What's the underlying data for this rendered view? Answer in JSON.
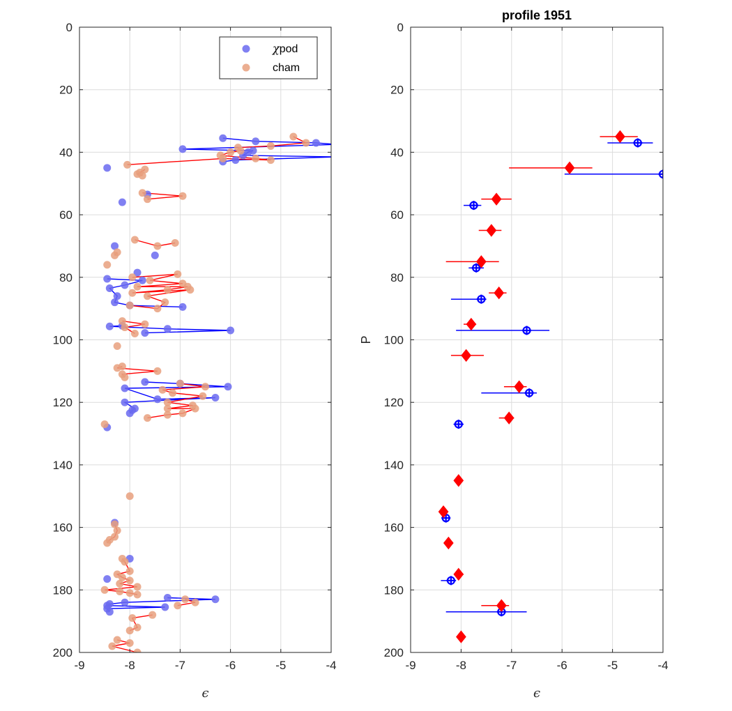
{
  "colors": {
    "chipod_marker": "#6a6af0",
    "cham_marker": "#e8a07e",
    "chipod_line": "#0000ff",
    "cham_line": "#ff0000",
    "overlap_marker": "#8a6aa8",
    "grid": "#dcdcdc",
    "axis": "#262626"
  },
  "chart_data": [
    {
      "type": "scatter",
      "title": "",
      "xlabel": "ϵ",
      "ylabel": "",
      "xlim": [
        -9,
        -4
      ],
      "ylim": [
        0,
        200
      ],
      "y_reversed": true,
      "grid": true,
      "xticks": [
        "-9",
        "-8",
        "-7",
        "-6",
        "-5",
        "-4"
      ],
      "yticks": [
        "0",
        "20",
        "40",
        "60",
        "80",
        "100",
        "120",
        "140",
        "160",
        "180",
        "200"
      ],
      "legend": {
        "location": "top-right",
        "entries": [
          {
            "prefix": "χ",
            "label": "pod",
            "color": "#6a6af0"
          },
          {
            "prefix": "",
            "label": "cham",
            "color": "#e8a07e"
          }
        ]
      },
      "series": [
        {
          "name": "χpod",
          "connected": true,
          "points": [
            [
              -6.15,
              35.5
            ],
            [
              -5.5,
              36.5
            ],
            [
              -4.3,
              37
            ],
            [
              -3.9,
              37.5
            ],
            [
              -6.95,
              39
            ],
            [
              -5.55,
              39.5
            ],
            [
              -5.65,
              40
            ],
            [
              -5.75,
              41
            ],
            [
              -3.9,
              41.5
            ],
            [
              -5.9,
              42.5
            ],
            [
              -6.15,
              43
            ]
          ]
        },
        {
          "name": "χpod",
          "connected": false,
          "points": [
            [
              -8.45,
              45
            ],
            [
              -8.15,
              56
            ],
            [
              -7.65,
              53.5
            ]
          ]
        },
        {
          "name": "χpod",
          "connected": false,
          "points": [
            [
              -8.3,
              70
            ],
            [
              -7.5,
              73
            ],
            [
              -7.85,
              78.5
            ]
          ]
        },
        {
          "name": "χpod",
          "connected": true,
          "points": [
            [
              -8.45,
              80.5
            ],
            [
              -7.75,
              81
            ],
            [
              -8.1,
              82.5
            ],
            [
              -8.4,
              83.5
            ],
            [
              -8.25,
              86
            ],
            [
              -8.3,
              88
            ],
            [
              -8.0,
              89
            ],
            [
              -6.95,
              89.5
            ]
          ]
        },
        {
          "name": "χpod",
          "connected": true,
          "points": [
            [
              -8.15,
              95.5
            ],
            [
              -8.4,
              95.7
            ],
            [
              -7.25,
              96.5
            ],
            [
              -6.0,
              97
            ],
            [
              -7.7,
              97.8
            ]
          ]
        },
        {
          "name": "χpod",
          "connected": true,
          "points": [
            [
              -7.7,
              113.5
            ],
            [
              -7.0,
              114
            ],
            [
              -6.05,
              115
            ],
            [
              -8.1,
              115.5
            ],
            [
              -7.45,
              119
            ],
            [
              -6.3,
              118.5
            ],
            [
              -8.1,
              120
            ],
            [
              -7.9,
              122
            ],
            [
              -7.95,
              122.5
            ],
            [
              -8.0,
              123.5
            ]
          ]
        },
        {
          "name": "χpod",
          "connected": false,
          "points": [
            [
              -8.45,
              128
            ]
          ]
        },
        {
          "name": "χpod",
          "connected": false,
          "points": [
            [
              -8.3,
              158.5
            ],
            [
              -8.0,
              170
            ],
            [
              -8.45,
              176.5
            ]
          ]
        },
        {
          "name": "χpod",
          "connected": true,
          "points": [
            [
              -7.25,
              182.5
            ],
            [
              -6.3,
              183
            ],
            [
              -8.1,
              184
            ],
            [
              -8.4,
              184.5
            ],
            [
              -8.45,
              185
            ],
            [
              -7.3,
              185.5
            ],
            [
              -8.45,
              186
            ],
            [
              -8.4,
              187
            ]
          ]
        },
        {
          "name": "cham",
          "connected": true,
          "points": [
            [
              -4.75,
              35
            ],
            [
              -4.5,
              37
            ],
            [
              -5.2,
              38
            ],
            [
              -5.85,
              38.5
            ],
            [
              -5.8,
              39.5
            ],
            [
              -6.0,
              40
            ],
            [
              -6.2,
              41
            ],
            [
              -5.5,
              42
            ],
            [
              -5.2,
              42.5
            ],
            [
              -6.15,
              42
            ],
            [
              -8.05,
              44
            ]
          ]
        },
        {
          "name": "cham",
          "connected": true,
          "points": [
            [
              -7.7,
              45.5
            ],
            [
              -7.8,
              46.5
            ],
            [
              -7.85,
              47
            ],
            [
              -7.75,
              47.5
            ]
          ]
        },
        {
          "name": "cham",
          "connected": true,
          "points": [
            [
              -7.75,
              53
            ],
            [
              -6.95,
              54
            ],
            [
              -7.65,
              55
            ]
          ]
        },
        {
          "name": "cham",
          "connected": true,
          "points": [
            [
              -7.1,
              69
            ],
            [
              -7.45,
              70
            ],
            [
              -7.9,
              68
            ]
          ]
        },
        {
          "name": "cham",
          "connected": true,
          "points": [
            [
              -8.25,
              72
            ],
            [
              -8.3,
              73
            ]
          ]
        },
        {
          "name": "cham",
          "connected": false,
          "points": [
            [
              -8.45,
              76
            ]
          ]
        },
        {
          "name": "cham",
          "connected": true,
          "points": [
            [
              -7.95,
              80
            ],
            [
              -7.05,
              79
            ],
            [
              -7.6,
              81
            ],
            [
              -6.95,
              82
            ],
            [
              -7.85,
              83
            ],
            [
              -6.85,
              83
            ],
            [
              -7.25,
              84
            ],
            [
              -7.95,
              85
            ],
            [
              -6.8,
              84
            ],
            [
              -7.65,
              86
            ],
            [
              -7.3,
              88
            ],
            [
              -7.45,
              90
            ],
            [
              -8.0,
              89
            ]
          ]
        },
        {
          "name": "cham",
          "connected": true,
          "points": [
            [
              -8.15,
              94
            ],
            [
              -7.7,
              95
            ],
            [
              -8.1,
              96
            ],
            [
              -7.9,
              98
            ]
          ]
        },
        {
          "name": "cham",
          "connected": false,
          "points": [
            [
              -8.25,
              102
            ]
          ]
        },
        {
          "name": "cham",
          "connected": true,
          "points": [
            [
              -8.15,
              108.5
            ],
            [
              -8.25,
              109
            ],
            [
              -7.45,
              110
            ],
            [
              -8.15,
              111
            ],
            [
              -8.1,
              112
            ]
          ]
        },
        {
          "name": "cham",
          "connected": true,
          "points": [
            [
              -7.0,
              114
            ],
            [
              -6.5,
              115
            ],
            [
              -7.35,
              116
            ],
            [
              -7.15,
              117
            ],
            [
              -6.55,
              118
            ],
            [
              -7.25,
              120
            ],
            [
              -6.75,
              121
            ],
            [
              -7.25,
              122
            ],
            [
              -6.7,
              122
            ],
            [
              -6.95,
              123.5
            ],
            [
              -7.25,
              124
            ],
            [
              -7.65,
              125
            ]
          ]
        },
        {
          "name": "cham",
          "connected": false,
          "points": [
            [
              -8.5,
              127
            ]
          ]
        },
        {
          "name": "cham",
          "connected": false,
          "points": [
            [
              -8.0,
              150
            ]
          ]
        },
        {
          "name": "cham",
          "connected": true,
          "points": [
            [
              -8.3,
              159
            ],
            [
              -8.25,
              161
            ],
            [
              -8.3,
              163
            ],
            [
              -8.4,
              164
            ],
            [
              -8.45,
              165
            ]
          ]
        },
        {
          "name": "cham",
          "connected": true,
          "points": [
            [
              -8.15,
              170
            ],
            [
              -8.1,
              171
            ],
            [
              -8.0,
              174
            ],
            [
              -8.25,
              175
            ],
            [
              -8.15,
              176
            ],
            [
              -8.0,
              177
            ],
            [
              -8.2,
              178
            ],
            [
              -7.85,
              179
            ],
            [
              -8.5,
              180
            ],
            [
              -8.2,
              180.5
            ],
            [
              -8.0,
              181
            ],
            [
              -7.85,
              181.5
            ]
          ]
        },
        {
          "name": "cham",
          "connected": true,
          "points": [
            [
              -6.9,
              183
            ],
            [
              -6.7,
              184
            ],
            [
              -7.05,
              185
            ]
          ]
        },
        {
          "name": "cham",
          "connected": true,
          "points": [
            [
              -7.55,
              188
            ],
            [
              -7.95,
              189
            ],
            [
              -7.85,
              192
            ],
            [
              -8.0,
              193
            ]
          ]
        },
        {
          "name": "cham",
          "connected": true,
          "points": [
            [
              -8.25,
              196
            ],
            [
              -8.0,
              197
            ],
            [
              -8.35,
              198
            ],
            [
              -7.85,
              200
            ]
          ]
        }
      ]
    },
    {
      "type": "scatter",
      "title": "profile 1951",
      "xlabel": "ϵ",
      "ylabel": "P",
      "xlim": [
        -9,
        -4
      ],
      "ylim": [
        0,
        200
      ],
      "y_reversed": true,
      "grid": true,
      "xticks": [
        "-9",
        "-8",
        "-7",
        "-6",
        "-5",
        "-4"
      ],
      "yticks": [
        "0",
        "20",
        "40",
        "60",
        "80",
        "100",
        "120",
        "140",
        "160",
        "180",
        "200"
      ],
      "series": [
        {
          "name": "χpod",
          "marker": "plus-circle",
          "points": [
            {
              "x": -4.5,
              "y": 37,
              "xmin": -5.1,
              "xmax": -4.2
            },
            {
              "x": -4.0,
              "y": 47,
              "xmin": -5.95,
              "xmax": -3.0
            },
            {
              "x": -7.75,
              "y": 57,
              "xmin": -7.95,
              "xmax": -7.6
            },
            {
              "x": -7.7,
              "y": 77,
              "xmin": -7.85,
              "xmax": -7.55
            },
            {
              "x": -7.6,
              "y": 87,
              "xmin": -8.2,
              "xmax": -7.5
            },
            {
              "x": -6.7,
              "y": 97,
              "xmin": -8.1,
              "xmax": -6.25
            },
            {
              "x": -6.65,
              "y": 117,
              "xmin": -7.6,
              "xmax": -6.5
            },
            {
              "x": -8.05,
              "y": 127,
              "xmin": -8.15,
              "xmax": -7.95
            },
            {
              "x": -8.3,
              "y": 157,
              "xmin": -8.35,
              "xmax": -8.25
            },
            {
              "x": -8.2,
              "y": 177,
              "xmin": -8.4,
              "xmax": -8.1
            },
            {
              "x": -7.2,
              "y": 187,
              "xmin": -8.3,
              "xmax": -6.7
            }
          ]
        },
        {
          "name": "cham",
          "marker": "diamond",
          "points": [
            {
              "x": -4.85,
              "y": 35,
              "xmin": -5.25,
              "xmax": -4.5
            },
            {
              "x": -5.85,
              "y": 45,
              "xmin": -7.05,
              "xmax": -5.4
            },
            {
              "x": -7.3,
              "y": 55,
              "xmin": -7.6,
              "xmax": -7.0
            },
            {
              "x": -7.4,
              "y": 65,
              "xmin": -7.65,
              "xmax": -7.2
            },
            {
              "x": -7.6,
              "y": 75,
              "xmin": -8.3,
              "xmax": -7.25
            },
            {
              "x": -7.25,
              "y": 85,
              "xmin": -7.45,
              "xmax": -7.1
            },
            {
              "x": -7.8,
              "y": 95,
              "xmin": -7.95,
              "xmax": -7.7
            },
            {
              "x": -7.9,
              "y": 105,
              "xmin": -8.2,
              "xmax": -7.55
            },
            {
              "x": -6.85,
              "y": 115,
              "xmin": -7.15,
              "xmax": -6.7
            },
            {
              "x": -7.05,
              "y": 125,
              "xmin": -7.25,
              "xmax": -6.95
            },
            {
              "x": -8.05,
              "y": 145,
              "xmin": -8.1,
              "xmax": -8.0
            },
            {
              "x": -8.35,
              "y": 155,
              "xmin": -8.4,
              "xmax": -8.3
            },
            {
              "x": -8.25,
              "y": 165,
              "xmin": -8.3,
              "xmax": -8.2
            },
            {
              "x": -8.05,
              "y": 175,
              "xmin": -8.1,
              "xmax": -7.95
            },
            {
              "x": -7.2,
              "y": 185,
              "xmin": -7.6,
              "xmax": -7.05
            },
            {
              "x": -8.0,
              "y": 195,
              "xmin": -8.05,
              "xmax": -7.95
            }
          ]
        }
      ]
    }
  ]
}
